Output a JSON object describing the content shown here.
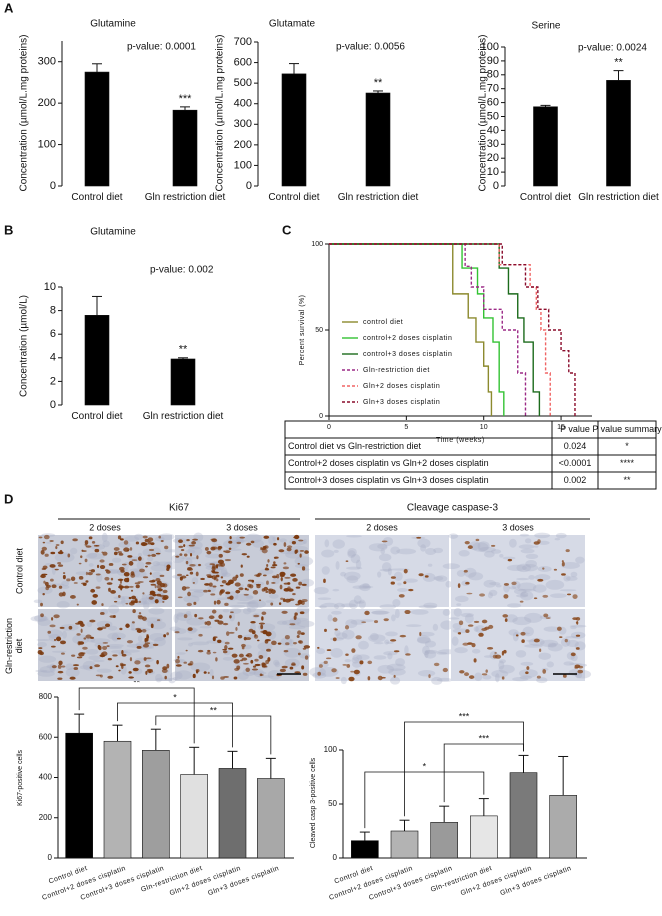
{
  "panel_labels": [
    "A",
    "B",
    "C",
    "D"
  ],
  "chart_data": [
    {
      "type": "bar",
      "title": "Glutamine",
      "y_label": "Concentration (µmol/L.mg proteins)",
      "categories": [
        "Control diet",
        "Gln restriction diet"
      ],
      "values": [
        275,
        183
      ],
      "errors": [
        20,
        8
      ],
      "color": "#000000",
      "ylim": [
        0,
        350
      ],
      "yticks": [
        0,
        100,
        200,
        300
      ],
      "annotation": "p-value: 0.0001",
      "significance_labels": [
        null,
        "***"
      ]
    },
    {
      "type": "bar",
      "title": "Glutamate",
      "y_label": "Concentration (µmol/L.mg proteins)",
      "categories": [
        "Control diet",
        "Gln restriction diet"
      ],
      "values": [
        545,
        452
      ],
      "errors": [
        50,
        10
      ],
      "color": "#000000",
      "ylim": [
        0,
        700
      ],
      "yticks": [
        0,
        100,
        200,
        300,
        400,
        500,
        600,
        700
      ],
      "annotation": "p-value: 0.0056",
      "significance_labels": [
        null,
        "**"
      ]
    },
    {
      "type": "bar",
      "title": "Serine",
      "y_label": "Concentration (µmol/L.mg proteins)",
      "categories": [
        "Control diet",
        "Gln restriction diet"
      ],
      "values": [
        57,
        76
      ],
      "errors": [
        1,
        7
      ],
      "color": "#000000",
      "ylim": [
        0,
        100
      ],
      "yticks": [
        0,
        10,
        20,
        30,
        40,
        50,
        60,
        70,
        80,
        90,
        100
      ],
      "annotation": "p-value: 0.0024",
      "significance_labels": [
        null,
        "**"
      ]
    },
    {
      "type": "bar",
      "title": "Glutamine",
      "y_label": "Concentration (µmol/L)",
      "categories": [
        "Control diet",
        "Gln restriction diet"
      ],
      "values": [
        7.6,
        3.9
      ],
      "errors": [
        1.6,
        0.1
      ],
      "color": "#000000",
      "ylim": [
        0,
        10
      ],
      "yticks": [
        0,
        2,
        4,
        6,
        8,
        10
      ],
      "annotation": "p-value: 0.002",
      "significance_labels": [
        null,
        "**"
      ]
    },
    {
      "type": "survival",
      "x_label": "Time (weeks)",
      "y_label": "Percent survival (%)",
      "xlim": [
        0,
        17
      ],
      "xticks": [
        0,
        5,
        10,
        15
      ],
      "ylim": [
        0,
        100
      ],
      "yticks": [
        0,
        50,
        100
      ],
      "series": [
        {
          "name": "control diet",
          "color": "#8c8a2e",
          "dashed": false,
          "x": [
            0,
            8,
            8,
            9,
            9,
            9.5,
            9.5,
            10,
            10,
            10.3,
            10.3,
            10.5,
            10.5
          ],
          "values": [
            100,
            100,
            71,
            71,
            57,
            57,
            43,
            43,
            29,
            29,
            14,
            14,
            0
          ]
        },
        {
          "name": "control+2 doses cisplatin",
          "color": "#33c233",
          "dashed": false,
          "x": [
            0,
            8.6,
            8.6,
            9.6,
            9.6,
            10,
            10,
            10.6,
            10.6,
            11,
            11,
            11.3,
            11.3
          ],
          "values": [
            100,
            100,
            86,
            86,
            71,
            71,
            57,
            57,
            43,
            43,
            14,
            14,
            0
          ]
        },
        {
          "name": "control+3 doses cisplatin",
          "color": "#1c6b1c",
          "dashed": false,
          "x": [
            0,
            11,
            11,
            11.6,
            11.6,
            12.2,
            12.2,
            12.6,
            12.6,
            13.2,
            13.2,
            13.6,
            13.6
          ],
          "values": [
            100,
            100,
            86,
            86,
            71,
            71,
            57,
            57,
            43,
            43,
            14,
            14,
            0
          ]
        },
        {
          "name": "Gln-restriction diet",
          "color": "#9c2a86",
          "dashed": true,
          "x": [
            0,
            8.8,
            8.8,
            9.2,
            9.2,
            10,
            10,
            11.2,
            11.2,
            12.2,
            12.2,
            12.7,
            12.7
          ],
          "values": [
            100,
            100,
            87,
            87,
            75,
            75,
            62,
            62,
            50,
            50,
            25,
            25,
            0
          ]
        },
        {
          "name": "Gln+2 doses cisplatin",
          "color": "#f06464",
          "dashed": true,
          "x": [
            0,
            11,
            11,
            13,
            13,
            13.4,
            13.4,
            13.7,
            13.7,
            14,
            14,
            14.3,
            14.3
          ],
          "values": [
            100,
            100,
            88,
            88,
            75,
            75,
            62,
            62,
            50,
            50,
            25,
            25,
            0
          ]
        },
        {
          "name": "Gln+3 doses cisplatin",
          "color": "#8a0c2c",
          "dashed": true,
          "x": [
            0,
            11.2,
            11.2,
            12.7,
            12.7,
            13.5,
            13.5,
            14.2,
            14.2,
            15,
            15,
            15.5,
            15.5,
            15.9,
            15.9
          ],
          "values": [
            100,
            100,
            88,
            88,
            75,
            75,
            62,
            62,
            50,
            50,
            38,
            38,
            25,
            25,
            0
          ]
        }
      ]
    },
    {
      "type": "bar",
      "y_label": "Ki67-positive cells",
      "categories": [
        "Control diet",
        "Control+2 doses cisplatin",
        "Control+3 doses cisplatin",
        "Gln-restriction diet",
        "Gln+2 doses cisplatin",
        "Gln+3 doses cisplatin"
      ],
      "values": [
        620,
        580,
        535,
        415,
        445,
        395
      ],
      "errors": [
        95,
        80,
        105,
        135,
        85,
        100
      ],
      "colors": [
        "#000000",
        "#b3b3b3",
        "#9e9e9e",
        "#e0e0e0",
        "#6e6e6e",
        "#a8a8a8"
      ],
      "ylim": [
        0,
        800
      ],
      "yticks": [
        0,
        200,
        400,
        600,
        800
      ],
      "brackets": [
        {
          "from": 0,
          "to": 3,
          "label": "**"
        },
        {
          "from": 1,
          "to": 4,
          "label": "*"
        },
        {
          "from": 2,
          "to": 5,
          "label": "**"
        }
      ]
    },
    {
      "type": "bar",
      "y_label": "Cleaved casp 3-positive cells",
      "categories": [
        "Control diet",
        "Control+2 doses cisplatin",
        "Control+3 doses cisplatin",
        "Gln-restriction diet",
        "Gln+2 doses cisplatin",
        "Gln+3 doses cisplatin"
      ],
      "values": [
        16,
        25,
        33,
        39,
        79,
        58
      ],
      "errors": [
        8,
        10,
        15,
        16,
        16,
        36
      ],
      "colors": [
        "#000000",
        "#b3b3b3",
        "#9a9a9a",
        "#e6e6e6",
        "#7a7a7a",
        "#ababab"
      ],
      "ylim": [
        0,
        100
      ],
      "yticks": [
        0,
        50,
        100
      ],
      "brackets": [
        {
          "from": 0,
          "to": 3,
          "label": "*"
        },
        {
          "from": 1,
          "to": 4,
          "label": "***"
        },
        {
          "from": 2,
          "to": 4,
          "label": "***"
        }
      ]
    }
  ],
  "table": {
    "columns": [
      "P value",
      "P value summary"
    ],
    "rows": [
      {
        "label": "Control diet vs Gln-restriction diet",
        "p": "0.024",
        "summary": "*"
      },
      {
        "label": "Control+2 doses cisplatin vs Gln+2 doses cisplatin",
        "p": "<0.0001",
        "summary": "****"
      },
      {
        "label": "Control+3 doses cisplatin vs Gln+3 doses cisplatin",
        "p": "0.002",
        "summary": "**"
      }
    ]
  },
  "images": {
    "groups": [
      {
        "title": "Ki67",
        "columns": [
          "2 doses",
          "3 doses"
        ]
      },
      {
        "title": "Cleavage caspase-3",
        "columns": [
          "2 doses",
          "3 doses"
        ]
      }
    ],
    "rows": [
      "Control diet",
      "Gln-restriction diet"
    ]
  }
}
